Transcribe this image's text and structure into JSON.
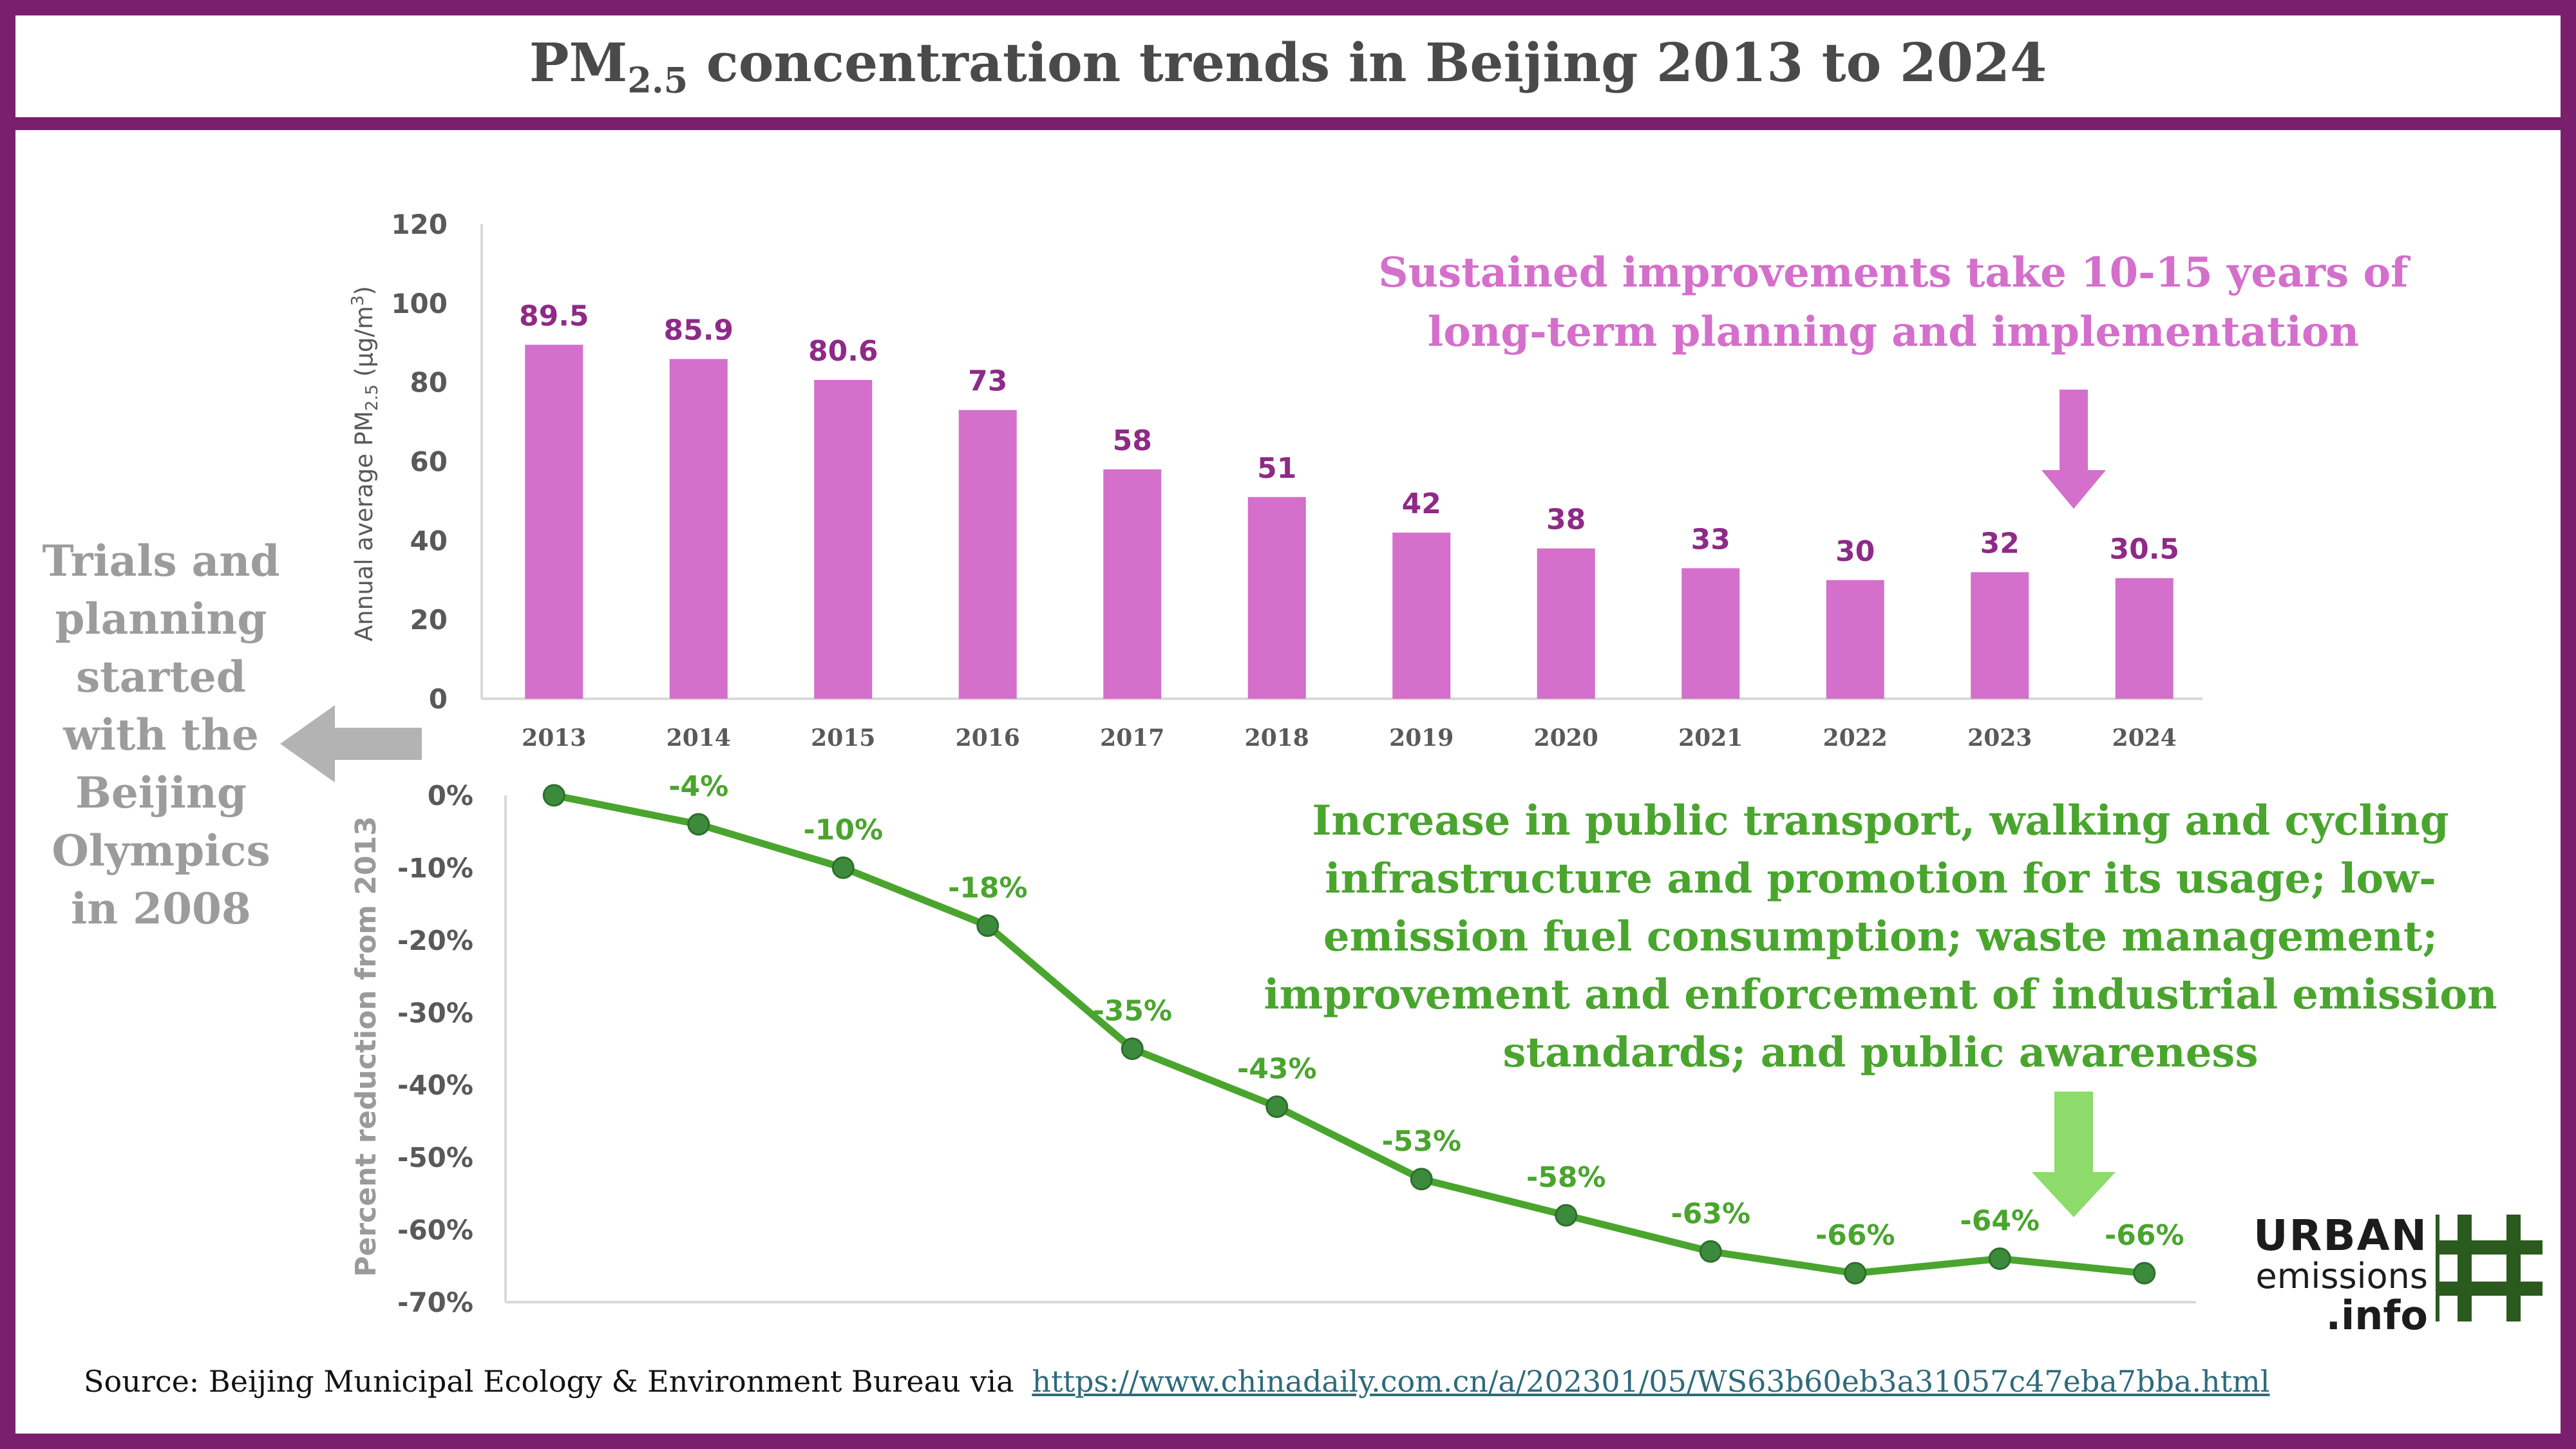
{
  "title": {
    "main": "PM",
    "sub": "2.5",
    "rest": " concentration trends in Beijing 2013 to 2024"
  },
  "notes": {
    "purple": "Sustained improvements take 10-15 years of long-term planning and implementation",
    "green": "Increase in public transport, walking and cycling infrastructure and promotion for its usage; low-emission fuel consumption; waste management; improvement and enforcement of industrial emission standards; and public awareness",
    "grey": "Trials and planning started with the Beijing Olympics in 2008"
  },
  "source": {
    "text": "Source: Beijing Municipal Ecology & Environment Bureau via",
    "link": "https://www.chinadaily.com.cn/a/202301/05/WS63b60eb3a31057c47eba7bba.html"
  },
  "logo": {
    "line1": "URBAN",
    "line2": "emissions",
    "line3": ".info"
  },
  "colors": {
    "frame": "#7a1f6e",
    "bar": "#d46fcb",
    "bar_label": "#8e2a87",
    "line": "#4aa52e",
    "marker": "#3c8a3c",
    "grey": "#9c9c9c",
    "logo_green": "#2b5a1e"
  },
  "chart_data": [
    {
      "type": "bar",
      "categories": [
        "2013",
        "2014",
        "2015",
        "2016",
        "2017",
        "2018",
        "2019",
        "2020",
        "2021",
        "2022",
        "2023",
        "2024"
      ],
      "values": [
        89.5,
        85.9,
        80.6,
        73,
        58,
        51,
        42,
        38,
        33,
        30,
        32,
        30.5
      ],
      "data_labels": [
        "89.5",
        "85.9",
        "80.6",
        "73",
        "58",
        "51",
        "42",
        "38",
        "33",
        "30",
        "32",
        "30.5"
      ],
      "ylabel": "Annual average PM2.5 (µg/m3)",
      "ylabel_parts": [
        "Annual average PM",
        "2.5",
        " (µg/m",
        "3",
        ")"
      ],
      "ylim": [
        0,
        120
      ],
      "yticks": [
        0,
        20,
        40,
        60,
        80,
        100,
        120
      ],
      "grid": false
    },
    {
      "type": "line",
      "x": [
        "2013",
        "2014",
        "2015",
        "2016",
        "2017",
        "2018",
        "2019",
        "2020",
        "2021",
        "2022",
        "2023",
        "2024"
      ],
      "values": [
        0,
        -4,
        -10,
        -18,
        -35,
        -43,
        -53,
        -58,
        -63,
        -66,
        -64,
        -66
      ],
      "data_labels": [
        "",
        "-4%",
        "-10%",
        "-18%",
        "-35%",
        "-43%",
        "-53%",
        "-58%",
        "-63%",
        "-66%",
        "-64%",
        "-66%"
      ],
      "ylabel": "Percent reduction from 2013",
      "ylim": [
        -70,
        0
      ],
      "yticks": [
        "0%",
        "-10%",
        "-20%",
        "-30%",
        "-40%",
        "-50%",
        "-60%",
        "-70%"
      ],
      "grid": false
    }
  ]
}
